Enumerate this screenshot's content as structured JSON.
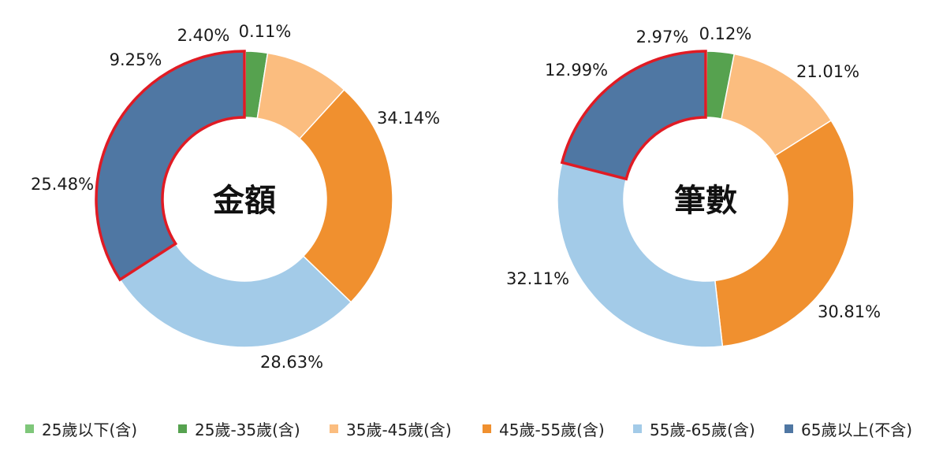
{
  "colors": {
    "highlight_outline": "#e01b24",
    "label_text": "#1a1a1a",
    "center_text": "#111111"
  },
  "legend": [
    {
      "label": "25歲以下(含)",
      "color": "#7fc77a"
    },
    {
      "label": "25歲-35歲(含)",
      "color": "#56a24f"
    },
    {
      "label": "35歲-45歲(含)",
      "color": "#fbbd7f"
    },
    {
      "label": "45歲-55歲(含)",
      "color": "#f0902f"
    },
    {
      "label": "55歲-65歲(含)",
      "color": "#a3cbe8"
    },
    {
      "label": "65歲以上(不含)",
      "color": "#4f77a3"
    }
  ],
  "chart_data": [
    {
      "type": "pie",
      "variant": "donut",
      "center_label": "金額",
      "categories": [
        "25歲以下(含)",
        "25歲-35歲(含)",
        "35歲-45歲(含)",
        "45歲-55歲(含)",
        "55歲-65歲(含)",
        "65歲以上(不含)"
      ],
      "values": [
        0.11,
        2.4,
        9.25,
        25.48,
        28.63,
        34.14
      ],
      "data_labels": [
        "0.11%",
        "2.40%",
        "9.25%",
        "25.48%",
        "28.63%",
        "34.14%"
      ],
      "highlighted_category": "65歲以上(不含)"
    },
    {
      "type": "pie",
      "variant": "donut",
      "center_label": "筆數",
      "categories": [
        "25歲以下(含)",
        "25歲-35歲(含)",
        "35歲-45歲(含)",
        "45歲-55歲(含)",
        "55歲-65歲(含)",
        "65歲以上(不含)"
      ],
      "values": [
        0.12,
        2.97,
        12.99,
        32.11,
        30.81,
        21.01
      ],
      "data_labels": [
        "0.12%",
        "2.97%",
        "12.99%",
        "32.11%",
        "30.81%",
        "21.01%"
      ],
      "highlighted_category": "65歲以上(不含)"
    }
  ]
}
